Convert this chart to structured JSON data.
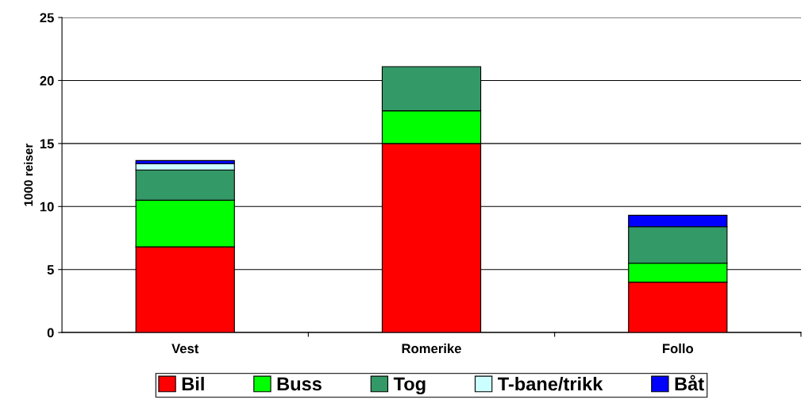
{
  "chart_data": {
    "type": "bar",
    "stacked": true,
    "ylabel": "1000 reiser",
    "categories": [
      "Vest",
      "Romerike",
      "Follo"
    ],
    "series": [
      {
        "name": "Bil",
        "color": "#ff0000",
        "values": [
          6.8,
          15.0,
          4.0
        ]
      },
      {
        "name": "Buss",
        "color": "#00ff00",
        "values": [
          3.7,
          2.6,
          1.5
        ]
      },
      {
        "name": "Tog",
        "color": "#339966",
        "values": [
          2.4,
          3.5,
          2.9
        ]
      },
      {
        "name": "T-bane/trikk",
        "color": "#ccffff",
        "values": [
          0.5,
          0,
          0
        ]
      },
      {
        "name": "Båt",
        "color": "#0000ff",
        "values": [
          0.25,
          0,
          0.9
        ]
      }
    ],
    "ylim": [
      0,
      25
    ],
    "yticks": [
      0,
      5,
      10,
      15,
      20,
      25
    ],
    "grid": "y",
    "legend": "bottom"
  }
}
